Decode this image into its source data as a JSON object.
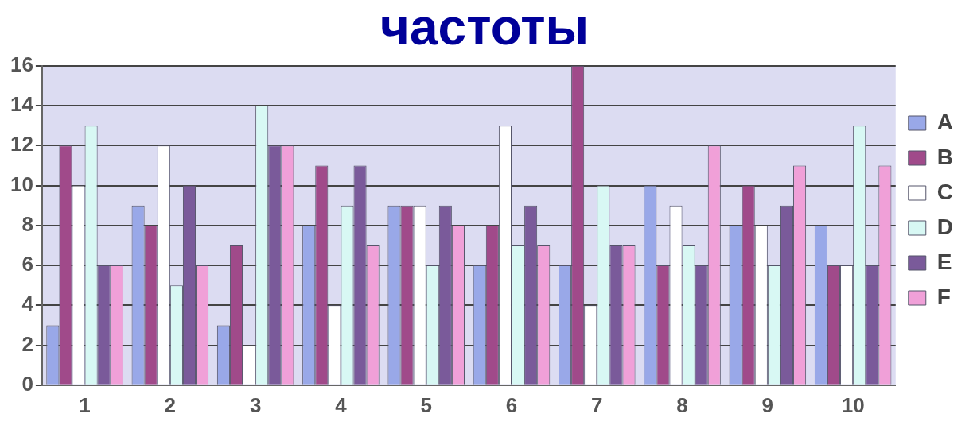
{
  "chart_data": {
    "type": "bar",
    "title": "частоты",
    "categories": [
      "1",
      "2",
      "3",
      "4",
      "5",
      "6",
      "7",
      "8",
      "9",
      "10"
    ],
    "series": [
      {
        "name": "A",
        "color": "#99a8e8",
        "values": [
          3,
          9,
          3,
          8,
          9,
          6,
          6,
          10,
          8,
          8
        ]
      },
      {
        "name": "B",
        "color": "#a04a8a",
        "values": [
          12,
          8,
          7,
          11,
          9,
          8,
          16,
          6,
          10,
          6
        ]
      },
      {
        "name": "C",
        "color": "#ffffff",
        "values": [
          10,
          12,
          2,
          4,
          9,
          13,
          4,
          9,
          8,
          6
        ]
      },
      {
        "name": "D",
        "color": "#d8f8f4",
        "values": [
          13,
          5,
          14,
          9,
          6,
          7,
          10,
          7,
          6,
          13
        ]
      },
      {
        "name": "E",
        "color": "#7a5a9a",
        "values": [
          6,
          10,
          12,
          11,
          9,
          9,
          7,
          6,
          9,
          6
        ]
      },
      {
        "name": "F",
        "color": "#f0a0d8",
        "values": [
          6,
          6,
          12,
          7,
          8,
          7,
          7,
          12,
          11,
          11
        ]
      }
    ],
    "ylim": [
      0,
      16
    ],
    "yticks": [
      0,
      2,
      4,
      6,
      8,
      10,
      12,
      14,
      16
    ],
    "grid": "y",
    "legend": "right"
  }
}
